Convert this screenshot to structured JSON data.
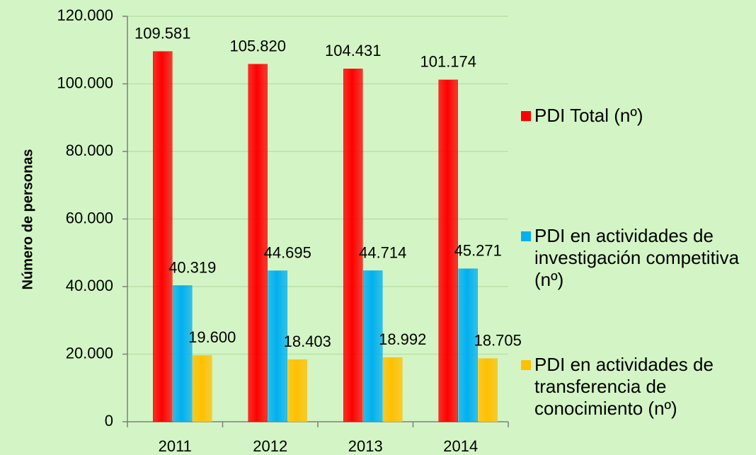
{
  "chart_data": {
    "type": "bar",
    "y_label": "Número de personas",
    "categories": [
      "2011",
      "2012",
      "2013",
      "2014"
    ],
    "series": [
      {
        "name": "PDI Total (nº)",
        "color": "#ff0000",
        "values": [
          109581,
          105820,
          104431,
          101174
        ],
        "value_labels": [
          "109.581",
          "105.820",
          "104.431",
          "101.174"
        ]
      },
      {
        "name": "PDI en actividades de investigación competitiva (nº)",
        "color": "#00b0f0",
        "values": [
          40319,
          44695,
          44714,
          45271
        ],
        "value_labels": [
          "40.319",
          "44.695",
          "44.714",
          "45.271"
        ]
      },
      {
        "name": "PDI en actividades de transferencia de conocimiento (nº)",
        "color": "#ffc000",
        "values": [
          19600,
          18403,
          18992,
          18705
        ],
        "value_labels": [
          "19.600",
          "18.403",
          "18.992",
          "18.705"
        ]
      }
    ],
    "ylim": [
      0,
      120000
    ],
    "yticks": [
      0,
      {
        "value": 20000,
        "label": "20.000"
      },
      {
        "value": 40000,
        "label": "40.000"
      },
      {
        "value": 60000,
        "label": "60.000"
      },
      {
        "value": 80000,
        "label": "80.000"
      },
      {
        "value": 100000,
        "label": "100.000"
      },
      {
        "value": 120000,
        "label": "120.000"
      }
    ],
    "grid": true,
    "legend": "right"
  }
}
